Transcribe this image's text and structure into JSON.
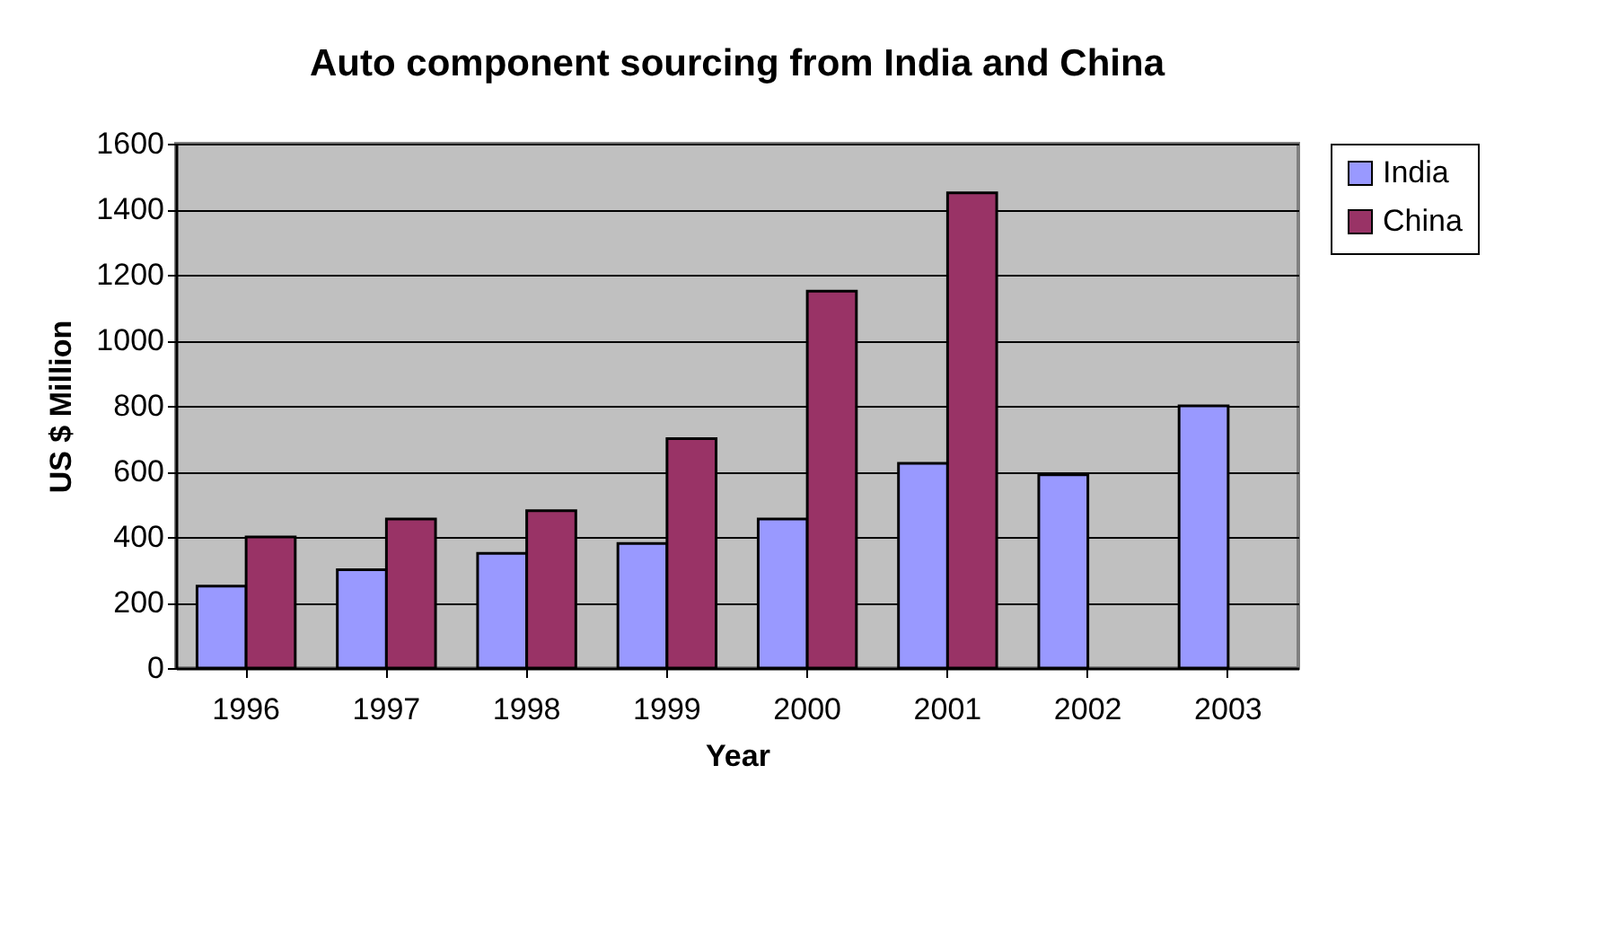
{
  "chart_data": {
    "type": "bar",
    "title": "Auto component sourcing from India and China",
    "xlabel": "Year",
    "ylabel": "US $ Million",
    "categories": [
      "1996",
      "1997",
      "1998",
      "1999",
      "2000",
      "2001",
      "2002",
      "2003"
    ],
    "series": [
      {
        "name": "India",
        "color": "#9999ff",
        "values": [
          250,
          300,
          350,
          380,
          455,
          625,
          590,
          800
        ]
      },
      {
        "name": "China",
        "color": "#993366",
        "values": [
          400,
          455,
          480,
          700,
          1150,
          1450,
          null,
          null
        ]
      }
    ],
    "ylim": [
      0,
      1600
    ],
    "yticks": [
      0,
      200,
      400,
      600,
      800,
      1000,
      1200,
      1400,
      1600
    ],
    "grid": "y",
    "legend": "right"
  }
}
